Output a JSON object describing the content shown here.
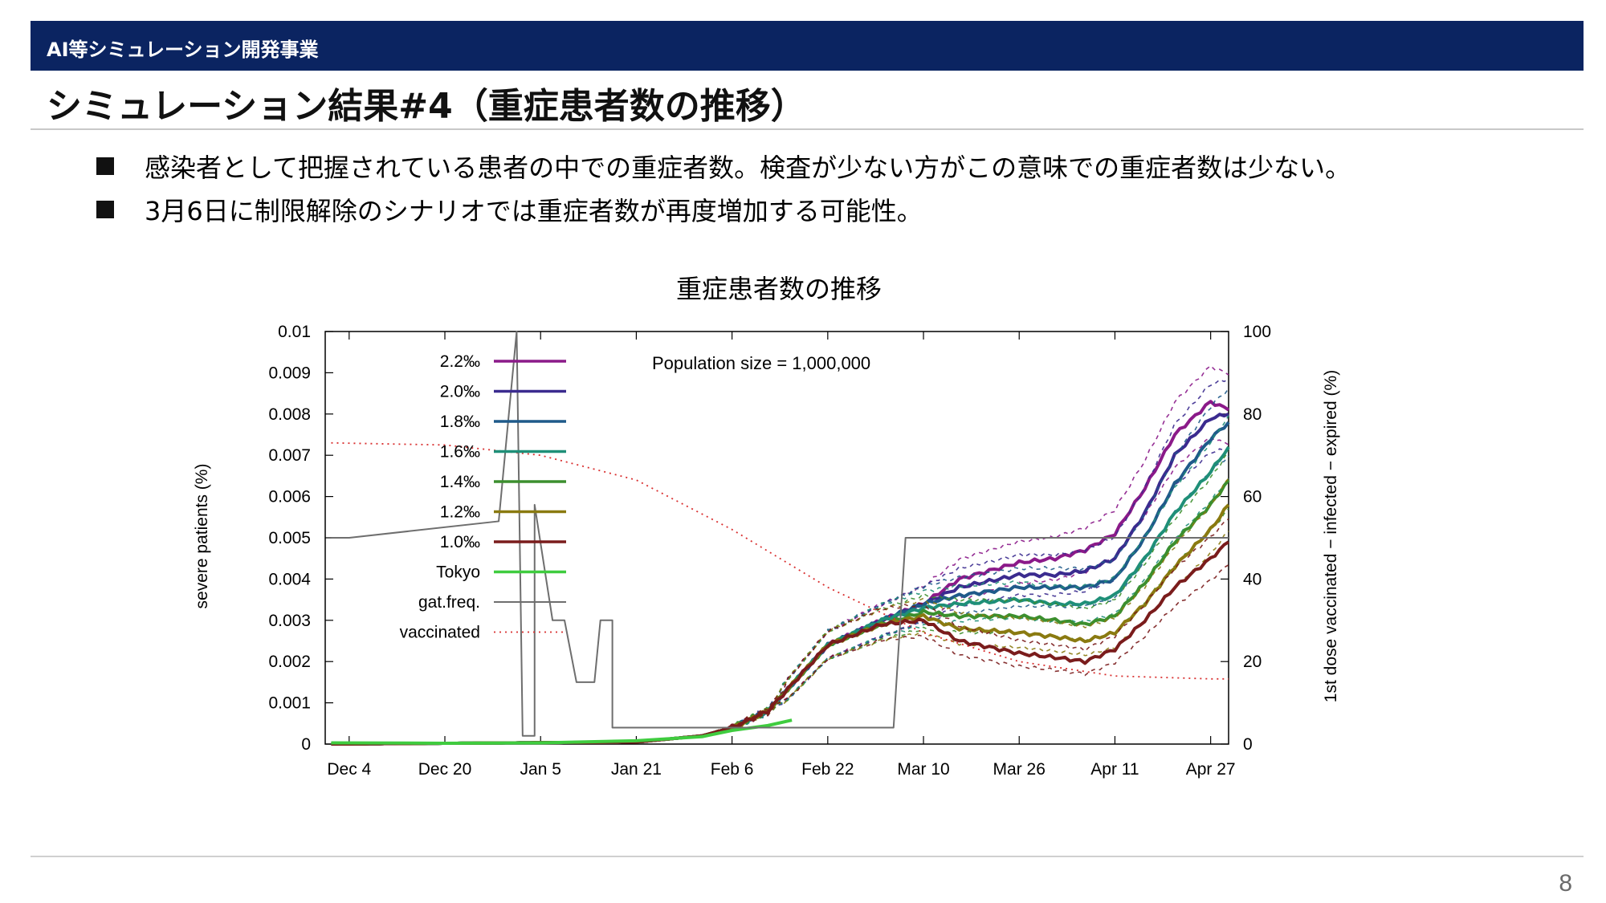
{
  "header": {
    "label": "AI等シミュレーション開発事業"
  },
  "page": {
    "title": "シミュレーション結果#4（重症患者数の推移）",
    "number": "8"
  },
  "bullets": [
    "感染者として把握されている患者の中での重症者数。検査が少ない方がこの意味での重症者数は少ない。",
    "3月6日に制限解除のシナリオでは重症者数が再度増加する可能性。"
  ],
  "chart_data": {
    "type": "line",
    "title": "重症患者数の推移",
    "annotation": "Population size = 1,000,000",
    "xlabel": "",
    "ylabel": "severe patients (%)",
    "y2label": "1st dose vaccinated − infected − expired (%)",
    "x_ticks": [
      "Dec 4",
      "Dec 20",
      "Jan 5",
      "Jan 21",
      "Feb 6",
      "Feb 22",
      "Mar 10",
      "Mar 26",
      "Apr 11",
      "Apr 27"
    ],
    "y_ticks": [
      "0",
      "0.001",
      "0.002",
      "0.003",
      "0.004",
      "0.005",
      "0.006",
      "0.007",
      "0.008",
      "0.009",
      "0.01"
    ],
    "y2_ticks": [
      "0",
      "20",
      "40",
      "60",
      "80",
      "100"
    ],
    "ylim": [
      0,
      0.01
    ],
    "y2lim": [
      0,
      100
    ],
    "xlim_days": [
      -3,
      148
    ],
    "x_day_of_first_tick": "Dec 4",
    "legend_position": "top-left",
    "series": [
      {
        "name": "2.2‰",
        "color": "#8b1a89",
        "axis": "y1",
        "x": [
          "Dec 1",
          "Jan 21",
          "Feb 1",
          "Feb 6",
          "Feb 12",
          "Feb 22",
          "Mar 3",
          "Mar 10",
          "Mar 16",
          "Mar 26",
          "Apr 1",
          "Apr 6",
          "Apr 11",
          "Apr 16",
          "Apr 21",
          "Apr 27",
          "Apr 30"
        ],
        "values": [
          0,
          5e-05,
          0.0002,
          0.0004,
          0.0008,
          0.0024,
          0.003,
          0.0034,
          0.004,
          0.0044,
          0.0045,
          0.0047,
          0.0051,
          0.0062,
          0.0075,
          0.0083,
          0.0081
        ]
      },
      {
        "name": "2.0‰",
        "color": "#3b2b8f",
        "axis": "y1",
        "x": [
          "Dec 1",
          "Jan 21",
          "Feb 1",
          "Feb 6",
          "Feb 12",
          "Feb 22",
          "Mar 3",
          "Mar 10",
          "Mar 16",
          "Mar 26",
          "Apr 1",
          "Apr 6",
          "Apr 11",
          "Apr 16",
          "Apr 21",
          "Apr 27",
          "Apr 30"
        ],
        "values": [
          0,
          5e-05,
          0.0002,
          0.0004,
          0.0008,
          0.0024,
          0.003,
          0.0034,
          0.0038,
          0.0041,
          0.0041,
          0.0042,
          0.0045,
          0.0056,
          0.007,
          0.0079,
          0.008
        ]
      },
      {
        "name": "1.8‰",
        "color": "#1f5a8a",
        "axis": "y1",
        "x": [
          "Dec 1",
          "Jan 21",
          "Feb 1",
          "Feb 6",
          "Feb 12",
          "Feb 22",
          "Mar 3",
          "Mar 10",
          "Mar 16",
          "Mar 26",
          "Apr 1",
          "Apr 6",
          "Apr 11",
          "Apr 16",
          "Apr 21",
          "Apr 27",
          "Apr 30"
        ],
        "values": [
          0,
          5e-05,
          0.0002,
          0.0004,
          0.0008,
          0.0024,
          0.003,
          0.0034,
          0.0036,
          0.0038,
          0.0038,
          0.0038,
          0.004,
          0.005,
          0.0063,
          0.0074,
          0.0078
        ]
      },
      {
        "name": "1.6‰",
        "color": "#1f8f78",
        "axis": "y1",
        "x": [
          "Dec 1",
          "Jan 21",
          "Feb 1",
          "Feb 6",
          "Feb 12",
          "Feb 22",
          "Mar 3",
          "Mar 10",
          "Mar 16",
          "Mar 26",
          "Apr 1",
          "Apr 6",
          "Apr 11",
          "Apr 16",
          "Apr 21",
          "Apr 27",
          "Apr 30"
        ],
        "values": [
          0,
          5e-05,
          0.0002,
          0.0004,
          0.0008,
          0.0024,
          0.003,
          0.0033,
          0.0034,
          0.0035,
          0.0034,
          0.0034,
          0.0036,
          0.0045,
          0.0056,
          0.0066,
          0.0072
        ]
      },
      {
        "name": "1.4‰",
        "color": "#3c8f2e",
        "axis": "y1",
        "x": [
          "Dec 1",
          "Jan 21",
          "Feb 1",
          "Feb 6",
          "Feb 12",
          "Feb 22",
          "Mar 3",
          "Mar 10",
          "Mar 16",
          "Mar 26",
          "Apr 1",
          "Apr 6",
          "Apr 11",
          "Apr 16",
          "Apr 21",
          "Apr 27",
          "Apr 30"
        ],
        "values": [
          0,
          5e-05,
          0.0002,
          0.0004,
          0.0008,
          0.0024,
          0.0029,
          0.0032,
          0.0031,
          0.0031,
          0.003,
          0.0029,
          0.0031,
          0.0039,
          0.0049,
          0.0058,
          0.0064
        ]
      },
      {
        "name": "1.2‰",
        "color": "#8a7a10",
        "axis": "y1",
        "x": [
          "Dec 1",
          "Jan 21",
          "Feb 1",
          "Feb 6",
          "Feb 12",
          "Feb 22",
          "Mar 3",
          "Mar 10",
          "Mar 16",
          "Mar 26",
          "Apr 1",
          "Apr 6",
          "Apr 11",
          "Apr 16",
          "Apr 21",
          "Apr 27",
          "Apr 30"
        ],
        "values": [
          0,
          5e-05,
          0.0002,
          0.0004,
          0.0008,
          0.0024,
          0.0029,
          0.0031,
          0.0028,
          0.0027,
          0.0026,
          0.0025,
          0.0027,
          0.0034,
          0.0043,
          0.0052,
          0.0058
        ]
      },
      {
        "name": "1.0‰",
        "color": "#7a1c1c",
        "axis": "y1",
        "x": [
          "Dec 1",
          "Jan 21",
          "Feb 1",
          "Feb 6",
          "Feb 12",
          "Feb 22",
          "Mar 3",
          "Mar 10",
          "Mar 16",
          "Mar 26",
          "Apr 1",
          "Apr 6",
          "Apr 11",
          "Apr 16",
          "Apr 21",
          "Apr 27",
          "Apr 30"
        ],
        "values": [
          0,
          5e-05,
          0.0002,
          0.0004,
          0.0008,
          0.0024,
          0.0029,
          0.003,
          0.0025,
          0.0022,
          0.0021,
          0.002,
          0.0023,
          0.003,
          0.0038,
          0.0045,
          0.0049
        ]
      },
      {
        "name": "Tokyo",
        "color": "#3fcc3f",
        "axis": "y1",
        "x": [
          "Dec 1",
          "Dec 20",
          "Jan 5",
          "Jan 21",
          "Feb 1",
          "Feb 6",
          "Feb 12",
          "Feb 16"
        ],
        "values": [
          3e-05,
          2e-05,
          3e-05,
          8e-05,
          0.00018,
          0.00033,
          0.00045,
          0.00058
        ]
      },
      {
        "name": "gat.freq.",
        "color": "#6e6e6e",
        "axis": "y2",
        "x": [
          "Dec 1",
          "Dec 4",
          "Dec 29",
          "Jan 1",
          "Jan 2",
          "Jan 2",
          "Jan 4",
          "Jan 4",
          "Jan 7",
          "Jan 7",
          "Jan 9",
          "Jan 11",
          "Jan 14",
          "Jan 15",
          "Jan 17",
          "Jan 17",
          "Jan 22",
          "Mar 5",
          "Mar 5",
          "Mar 7",
          "Apr 30"
        ],
        "values": [
          50,
          50,
          54,
          100,
          2,
          2,
          2,
          58,
          30,
          30,
          30,
          15,
          15,
          30,
          30,
          4,
          4,
          4,
          4,
          50,
          50
        ]
      },
      {
        "name": "vaccinated",
        "color": "#d93030",
        "axis": "y2",
        "dotted": true,
        "x": [
          "Dec 1",
          "Dec 20",
          "Jan 5",
          "Jan 21",
          "Feb 6",
          "Feb 22",
          "Mar 10",
          "Mar 26",
          "Apr 11",
          "Apr 27",
          "Apr 30"
        ],
        "values": [
          73,
          72.5,
          70,
          64,
          52,
          38,
          27,
          20,
          16.5,
          15.8,
          15.8
        ]
      }
    ]
  }
}
